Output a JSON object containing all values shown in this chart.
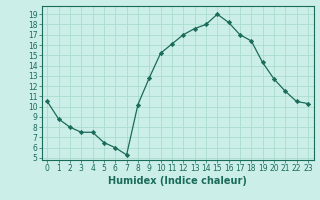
{
  "x": [
    0,
    1,
    2,
    3,
    4,
    5,
    6,
    7,
    8,
    9,
    10,
    11,
    12,
    13,
    14,
    15,
    16,
    17,
    18,
    19,
    20,
    21,
    22,
    23
  ],
  "y": [
    10.5,
    8.8,
    8.0,
    7.5,
    7.5,
    6.5,
    6.0,
    5.3,
    10.2,
    12.8,
    15.2,
    16.1,
    17.0,
    17.6,
    18.0,
    19.0,
    18.2,
    17.0,
    16.4,
    14.3,
    12.7,
    11.5,
    10.5,
    10.3
  ],
  "line_color": "#1a6b5a",
  "marker": "D",
  "marker_size": 2.2,
  "bg_color": "#cceee8",
  "grid_color": "#aaddcc",
  "xlabel": "Humidex (Indice chaleur)",
  "xlim": [
    -0.5,
    23.5
  ],
  "ylim": [
    4.8,
    19.8
  ],
  "yticks": [
    5,
    6,
    7,
    8,
    9,
    10,
    11,
    12,
    13,
    14,
    15,
    16,
    17,
    18,
    19
  ],
  "xticks": [
    0,
    1,
    2,
    3,
    4,
    5,
    6,
    7,
    8,
    9,
    10,
    11,
    12,
    13,
    14,
    15,
    16,
    17,
    18,
    19,
    20,
    21,
    22,
    23
  ],
  "tick_fontsize": 5.5,
  "label_fontsize": 7.0,
  "linewidth": 0.9
}
